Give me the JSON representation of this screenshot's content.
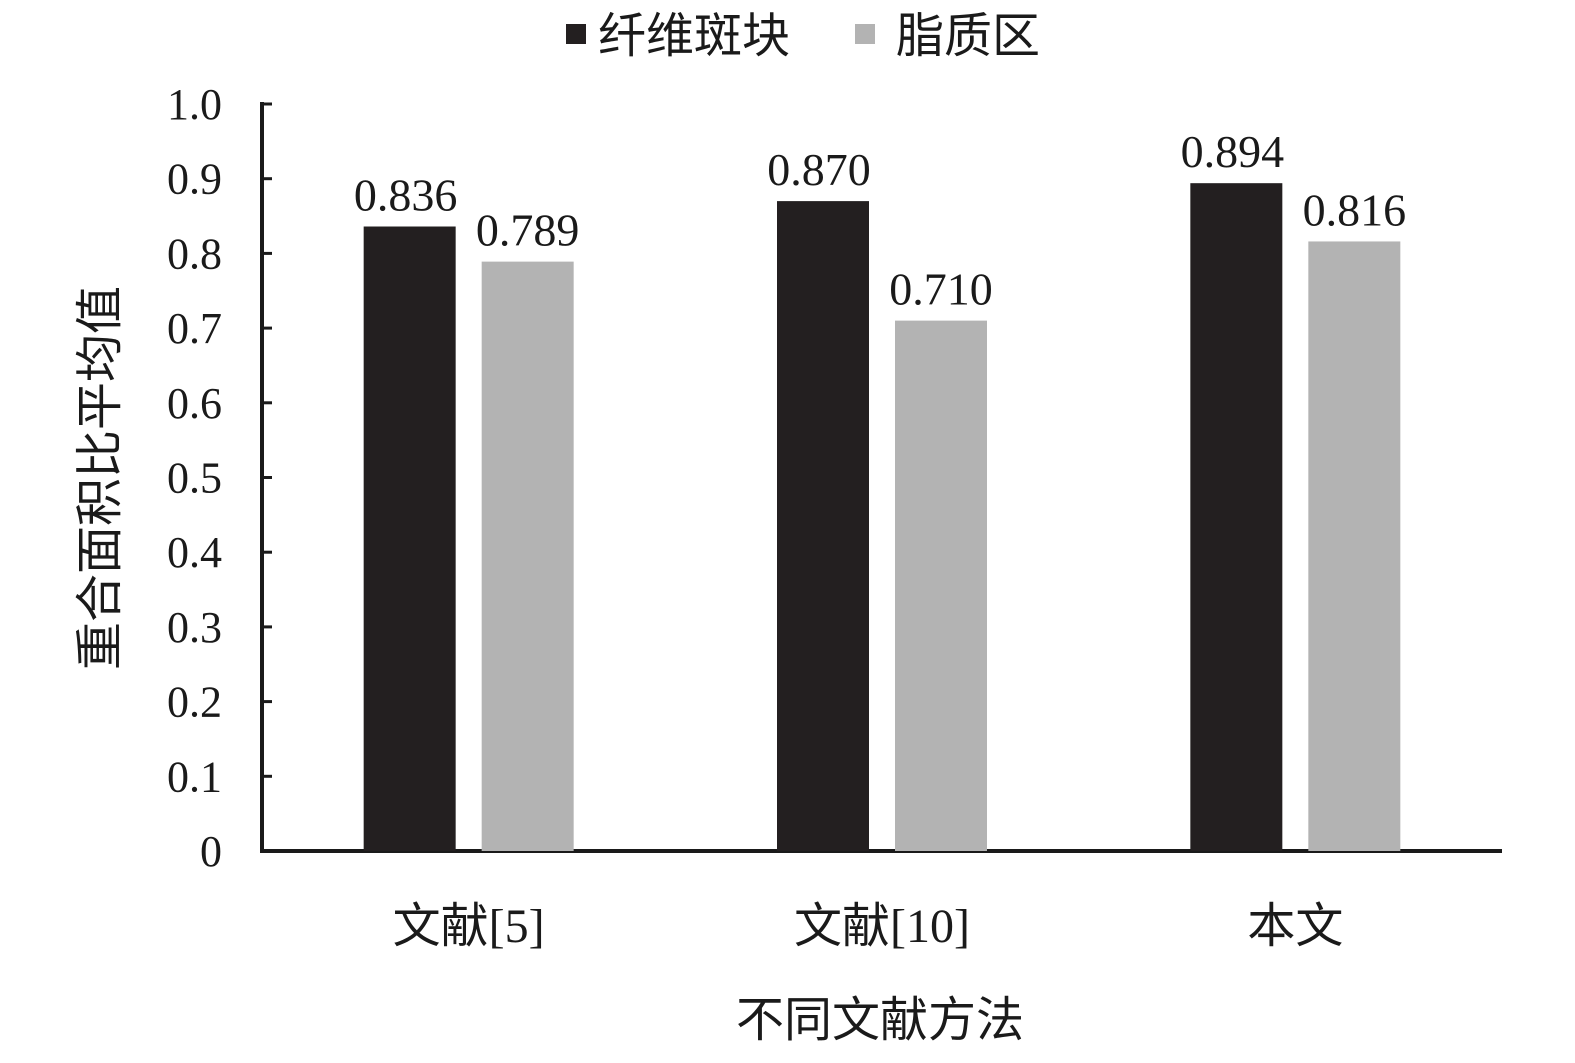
{
  "chart_data": {
    "type": "bar",
    "categories": [
      "文献[5]",
      "文献[10]",
      "本文"
    ],
    "series": [
      {
        "name": "纤维斑块",
        "color": "#231f20",
        "values": [
          0.836,
          0.87,
          0.894
        ],
        "labels": [
          "0.836",
          "0.870",
          "0.894"
        ]
      },
      {
        "name": "脂质区",
        "color": "#b3b3b3",
        "values": [
          0.789,
          0.71,
          0.816
        ],
        "labels": [
          "0.789",
          "0.710",
          "0.816"
        ]
      }
    ],
    "xlabel": "不同文献方法",
    "ylabel": "重合面积比平均值",
    "ylim": [
      0,
      1.0
    ],
    "yticks": [
      "0",
      "0.1",
      "0.2",
      "0.3",
      "0.4",
      "0.5",
      "0.6",
      "0.7",
      "0.8",
      "0.9",
      "1.0"
    ],
    "grid": false,
    "legend_position": "top-center"
  }
}
